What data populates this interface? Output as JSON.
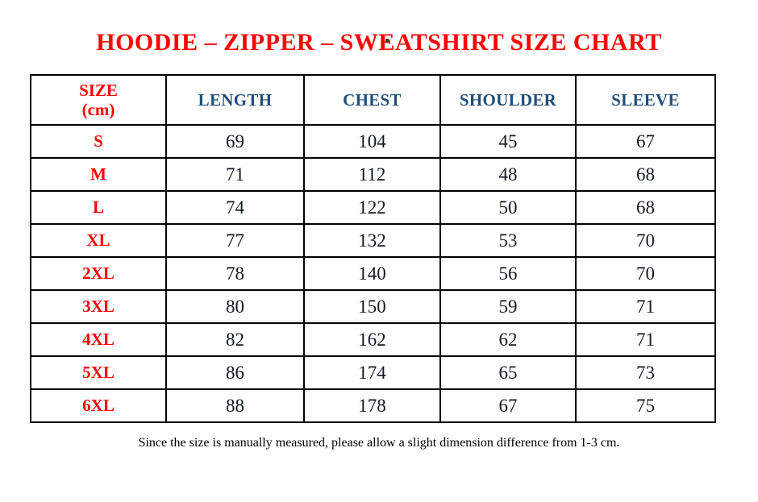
{
  "page": {
    "title": "HOODIE – ZIPPER – SWEATSHIRT SIZE CHART",
    "footer_note": "Since the size is manually measured, please allow a slight dimension difference from 1-3 cm."
  },
  "colors": {
    "title_red": "#ff0000",
    "size_label_red": "#ff0000",
    "header_blue": "#1f4e79",
    "value_black": "#141824",
    "border_black": "#000000",
    "background": "#ffffff"
  },
  "table": {
    "size_header_line1": "SIZE",
    "size_header_line2": "(cm)",
    "measure_headers": [
      "LENGTH",
      "CHEST",
      "SHOULDER",
      "SLEEVE"
    ],
    "rows": [
      {
        "size": "S",
        "values": [
          "69",
          "104",
          "45",
          "67"
        ]
      },
      {
        "size": "M",
        "values": [
          "71",
          "112",
          "48",
          "68"
        ]
      },
      {
        "size": "L",
        "values": [
          "74",
          "122",
          "50",
          "68"
        ]
      },
      {
        "size": "XL",
        "values": [
          "77",
          "132",
          "53",
          "70"
        ]
      },
      {
        "size": "2XL",
        "values": [
          "78",
          "140",
          "56",
          "70"
        ]
      },
      {
        "size": "3XL",
        "values": [
          "80",
          "150",
          "59",
          "71"
        ]
      },
      {
        "size": "4XL",
        "values": [
          "82",
          "162",
          "62",
          "71"
        ]
      },
      {
        "size": "5XL",
        "values": [
          "86",
          "174",
          "65",
          "73"
        ]
      },
      {
        "size": "6XL",
        "values": [
          "88",
          "178",
          "67",
          "75"
        ]
      }
    ]
  },
  "chart_data": {
    "type": "table",
    "title": "HOODIE – ZIPPER – SWEATSHIRT SIZE CHART",
    "columns": [
      "SIZE (cm)",
      "LENGTH",
      "CHEST",
      "SHOULDER",
      "SLEEVE"
    ],
    "rows": [
      [
        "S",
        69,
        104,
        45,
        67
      ],
      [
        "M",
        71,
        112,
        48,
        68
      ],
      [
        "L",
        74,
        122,
        50,
        68
      ],
      [
        "XL",
        77,
        132,
        53,
        70
      ],
      [
        "2XL",
        78,
        140,
        56,
        70
      ],
      [
        "3XL",
        80,
        150,
        59,
        71
      ],
      [
        "4XL",
        82,
        162,
        62,
        71
      ],
      [
        "5XL",
        86,
        174,
        65,
        73
      ],
      [
        "6XL",
        88,
        178,
        67,
        75
      ]
    ],
    "note": "Since the size is manually measured, please allow a slight dimension difference from 1-3 cm."
  }
}
